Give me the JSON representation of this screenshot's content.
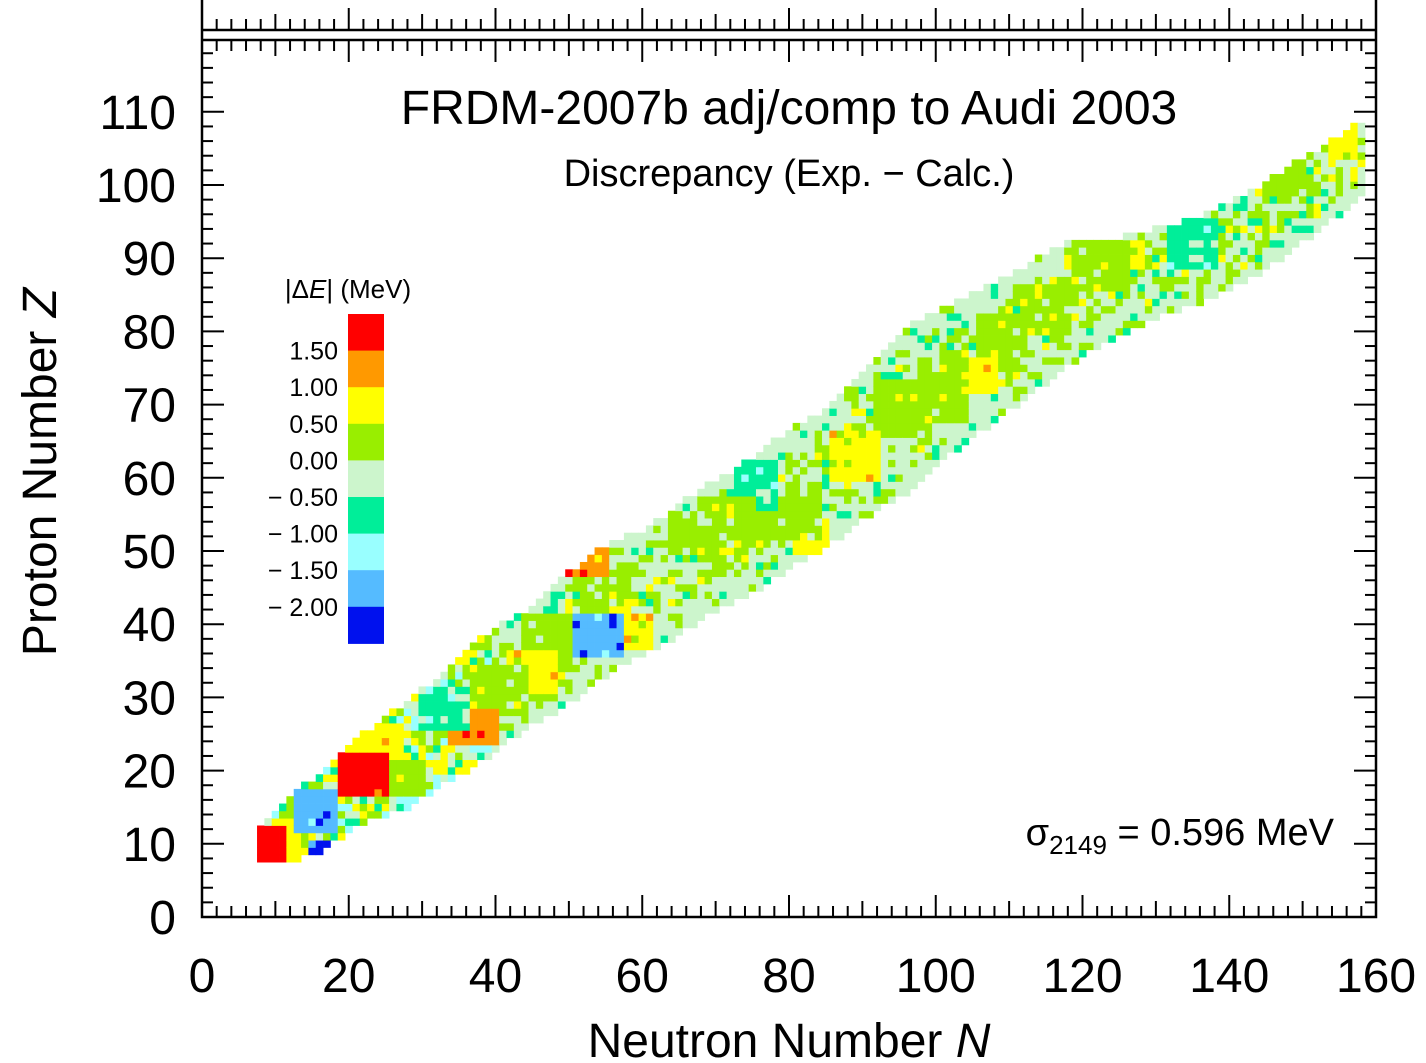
{
  "chart_data": {
    "type": "heatmap",
    "title": "FRDM-2007b  adj/comp to  Audi 2003",
    "subtitle": "Discrepancy (Exp. − Calc.)",
    "xlabel": "Neutron Number",
    "xlabel_symbol": "N",
    "ylabel": "Proton Number",
    "ylabel_symbol": "Z",
    "xlim": [
      0,
      160
    ],
    "ylim": [
      0,
      120
    ],
    "x_ticks": [
      "0",
      "20",
      "40",
      "60",
      "80",
      "100",
      "120",
      "140",
      "160"
    ],
    "y_ticks": [
      "0",
      "10",
      "20",
      "30",
      "40",
      "50",
      "60",
      "70",
      "80",
      "90",
      "100",
      "110"
    ],
    "annotation": {
      "sigma_symbol": "σ",
      "sigma_subscript": "2149",
      "sigma_text": " = 0.596 MeV"
    },
    "legend": {
      "title_pre": "|Δ",
      "title_var": "E",
      "title_post": "| (MeV)",
      "placement": "left",
      "bins": [
        {
          "color": "#ff0000",
          "label": "1.50"
        },
        {
          "color": "#ff9900",
          "label": "1.00"
        },
        {
          "color": "#ffff00",
          "label": "0.50"
        },
        {
          "color": "#99ee00",
          "label": "0.00"
        },
        {
          "color": "#ccf5cc",
          "label": "− 0.50"
        },
        {
          "color": "#00ee99",
          "label": "− 1.00"
        },
        {
          "color": "#99ffff",
          "label": "− 1.50"
        },
        {
          "color": "#55bbff",
          "label": "− 2.00"
        },
        {
          "color": "#0011ee",
          "label": ""
        }
      ]
    },
    "valley_of_stability": [
      {
        "n": 8,
        "zmin": 8,
        "zmax": 12
      },
      {
        "n": 12,
        "zmin": 8,
        "zmax": 16
      },
      {
        "n": 16,
        "zmin": 9,
        "zmax": 19
      },
      {
        "n": 20,
        "zmin": 12,
        "zmax": 23
      },
      {
        "n": 24,
        "zmin": 14,
        "zmax": 26
      },
      {
        "n": 28,
        "zmin": 15,
        "zmax": 29
      },
      {
        "n": 32,
        "zmin": 18,
        "zmax": 32
      },
      {
        "n": 36,
        "zmin": 20,
        "zmax": 36
      },
      {
        "n": 40,
        "zmin": 23,
        "zmax": 39
      },
      {
        "n": 44,
        "zmin": 26,
        "zmax": 41
      },
      {
        "n": 48,
        "zmin": 28,
        "zmax": 45
      },
      {
        "n": 52,
        "zmin": 31,
        "zmax": 48
      },
      {
        "n": 56,
        "zmin": 34,
        "zmax": 51
      },
      {
        "n": 60,
        "zmin": 36,
        "zmax": 52
      },
      {
        "n": 64,
        "zmin": 38,
        "zmax": 55
      },
      {
        "n": 68,
        "zmin": 41,
        "zmax": 58
      },
      {
        "n": 72,
        "zmin": 43,
        "zmax": 60
      },
      {
        "n": 76,
        "zmin": 45,
        "zmax": 63
      },
      {
        "n": 80,
        "zmin": 48,
        "zmax": 66
      },
      {
        "n": 84,
        "zmin": 50,
        "zmax": 68
      },
      {
        "n": 88,
        "zmin": 53,
        "zmax": 72
      },
      {
        "n": 92,
        "zmin": 56,
        "zmax": 76
      },
      {
        "n": 96,
        "zmin": 58,
        "zmax": 80
      },
      {
        "n": 100,
        "zmin": 62,
        "zmax": 82
      },
      {
        "n": 104,
        "zmin": 65,
        "zmax": 84
      },
      {
        "n": 108,
        "zmin": 68,
        "zmax": 86
      },
      {
        "n": 112,
        "zmin": 71,
        "zmax": 88
      },
      {
        "n": 116,
        "zmin": 74,
        "zmax": 91
      },
      {
        "n": 120,
        "zmin": 77,
        "zmax": 92
      },
      {
        "n": 124,
        "zmin": 79,
        "zmax": 92
      },
      {
        "n": 128,
        "zmin": 81,
        "zmax": 93
      },
      {
        "n": 132,
        "zmin": 83,
        "zmax": 94
      },
      {
        "n": 136,
        "zmin": 84,
        "zmax": 95
      },
      {
        "n": 140,
        "zmin": 86,
        "zmax": 97
      },
      {
        "n": 144,
        "zmin": 88,
        "zmax": 99
      },
      {
        "n": 148,
        "zmin": 91,
        "zmax": 102
      },
      {
        "n": 152,
        "zmin": 94,
        "zmax": 104
      },
      {
        "n": 156,
        "zmin": 97,
        "zmax": 107
      },
      {
        "n": 158,
        "zmin": 99,
        "zmax": 108
      }
    ],
    "regions": [
      {
        "n": [
          8,
          11
        ],
        "z": [
          8,
          12
        ],
        "bin": 0
      },
      {
        "n": [
          11,
          14
        ],
        "z": [
          8,
          11
        ],
        "bin": 2
      },
      {
        "n": [
          14,
          17
        ],
        "z": [
          8,
          10
        ],
        "bin": 8
      },
      {
        "n": [
          13,
          18
        ],
        "z": [
          12,
          17
        ],
        "bin": 7
      },
      {
        "n": [
          19,
          25
        ],
        "z": [
          17,
          22
        ],
        "bin": 0
      },
      {
        "n": [
          18,
          27
        ],
        "z": [
          22,
          26
        ],
        "bin": 2
      },
      {
        "n": [
          24,
          30
        ],
        "z": [
          17,
          21
        ],
        "bin": 3
      },
      {
        "n": [
          27,
          31
        ],
        "z": [
          13,
          17
        ],
        "bin": 6
      },
      {
        "n": [
          30,
          36
        ],
        "z": [
          26,
          31
        ],
        "bin": 5
      },
      {
        "n": [
          34,
          40
        ],
        "z": [
          24,
          28
        ],
        "bin": 1
      },
      {
        "n": [
          36,
          44
        ],
        "z": [
          28,
          34
        ],
        "bin": 3
      },
      {
        "n": [
          42,
          48
        ],
        "z": [
          31,
          36
        ],
        "bin": 2
      },
      {
        "n": [
          44,
          50
        ],
        "z": [
          35,
          41
        ],
        "bin": 3
      },
      {
        "n": [
          51,
          57
        ],
        "z": [
          36,
          41
        ],
        "bin": 7
      },
      {
        "n": [
          54,
          56
        ],
        "z": [
          37,
          39
        ],
        "bin": 8
      },
      {
        "n": [
          57,
          61
        ],
        "z": [
          37,
          41
        ],
        "bin": 2
      },
      {
        "n": [
          50,
          55
        ],
        "z": [
          47,
          50
        ],
        "bin": 1
      },
      {
        "n": [
          52,
          58
        ],
        "z": [
          42,
          47
        ],
        "bin": 3
      },
      {
        "n": [
          64,
          68
        ],
        "z": [
          50,
          55
        ],
        "bin": 3
      },
      {
        "n": [
          68,
          75
        ],
        "z": [
          51,
          57
        ],
        "bin": 3
      },
      {
        "n": [
          73,
          78
        ],
        "z": [
          56,
          62
        ],
        "bin": 5
      },
      {
        "n": [
          76,
          84
        ],
        "z": [
          52,
          58
        ],
        "bin": 3
      },
      {
        "n": [
          81,
          85
        ],
        "z": [
          50,
          54
        ],
        "bin": 2
      },
      {
        "n": [
          86,
          92
        ],
        "z": [
          60,
          66
        ],
        "bin": 2
      },
      {
        "n": [
          92,
          98
        ],
        "z": [
          66,
          73
        ],
        "bin": 3
      },
      {
        "n": [
          98,
          104
        ],
        "z": [
          68,
          76
        ],
        "bin": 3
      },
      {
        "n": [
          104,
          108
        ],
        "z": [
          72,
          76
        ],
        "bin": 2
      },
      {
        "n": [
          106,
          112
        ],
        "z": [
          75,
          82
        ],
        "bin": 3
      },
      {
        "n": [
          112,
          118
        ],
        "z": [
          80,
          86
        ],
        "bin": 3
      },
      {
        "n": [
          118,
          126
        ],
        "z": [
          86,
          92
        ],
        "bin": 3
      },
      {
        "n": [
          126,
          128
        ],
        "z": [
          89,
          92
        ],
        "bin": 2
      },
      {
        "n": [
          132,
          138
        ],
        "z": [
          89,
          95
        ],
        "bin": 5
      },
      {
        "n": [
          144,
          150
        ],
        "z": [
          99,
          103
        ],
        "bin": 3
      },
      {
        "n": [
          154,
          157
        ],
        "z": [
          104,
          108
        ],
        "bin": 2
      }
    ]
  }
}
